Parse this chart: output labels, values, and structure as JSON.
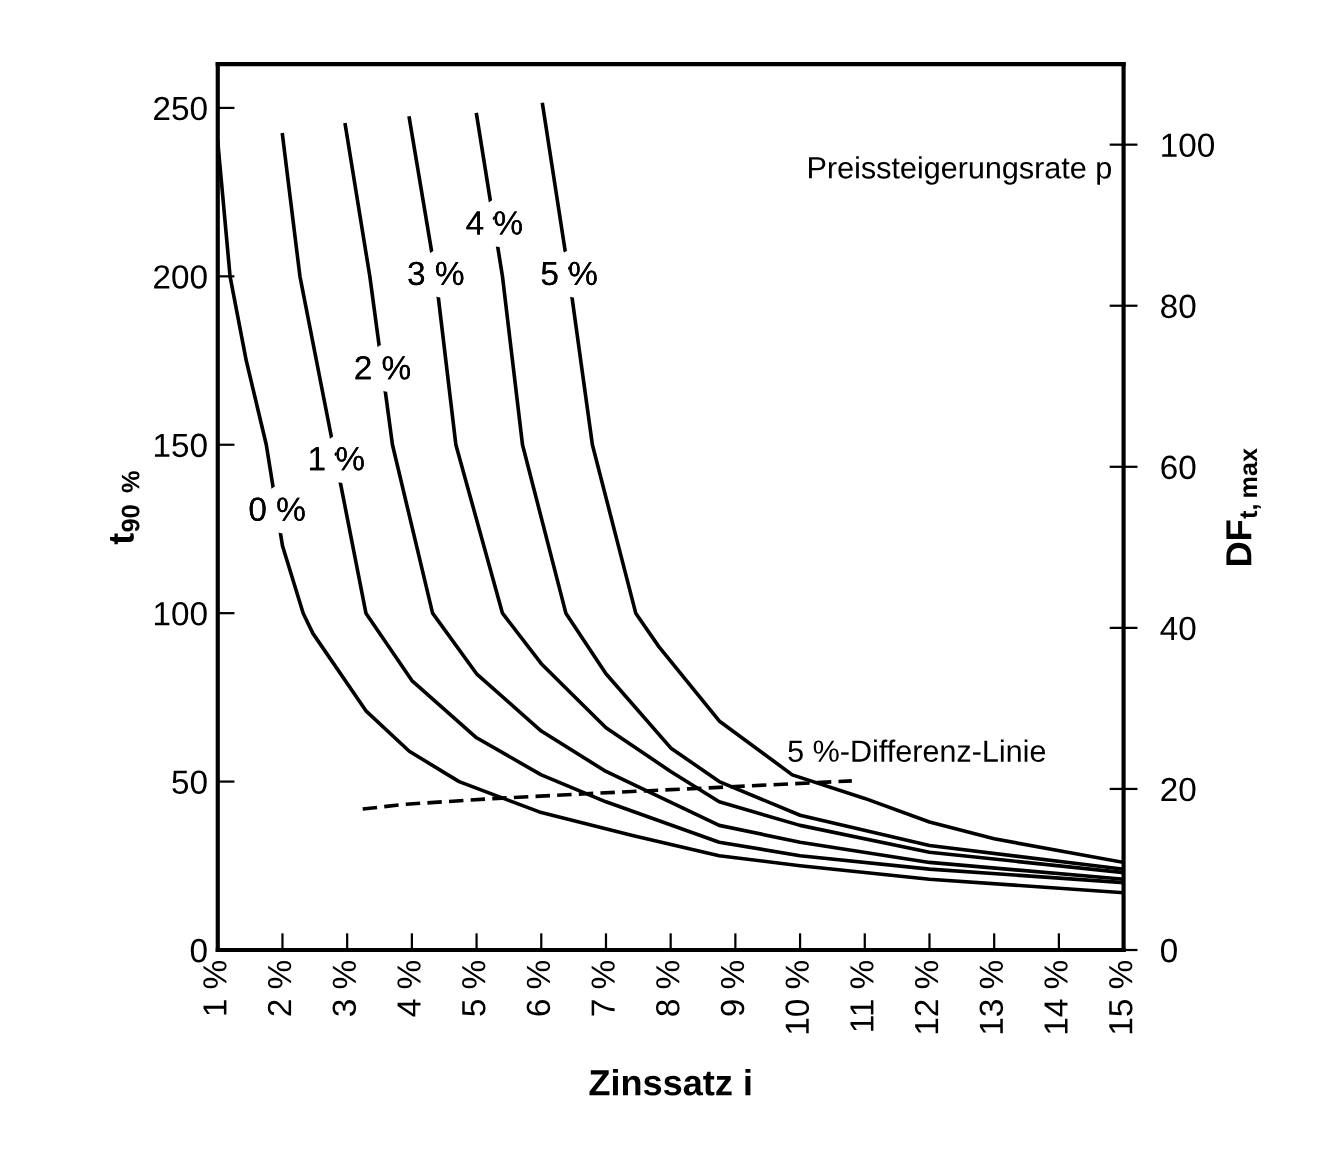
{
  "chart_data": {
    "type": "line",
    "xlabel": "Zinssatz i",
    "ylabel": "t$_{90 %}$",
    "y2label": "DF$_{t,max}$",
    "annotations": [
      "Preissteigerungsrate p"
    ],
    "xlim": [
      1,
      15
    ],
    "xticks": [
      {
        "value": 1,
        "label": "1 %"
      },
      {
        "value": 2,
        "label": "2 %"
      },
      {
        "value": 3,
        "label": "3 %"
      },
      {
        "value": 4,
        "label": "4 %"
      },
      {
        "value": 5,
        "label": "5 %"
      },
      {
        "value": 6,
        "label": "6 %"
      },
      {
        "value": 7,
        "label": "7 %"
      },
      {
        "value": 8,
        "label": "8 %"
      },
      {
        "value": 9,
        "label": "9 %"
      },
      {
        "value": 10,
        "label": "10 %"
      },
      {
        "value": 11,
        "label": "11 %"
      },
      {
        "value": 12,
        "label": "12 %"
      },
      {
        "value": 13,
        "label": "13 %"
      },
      {
        "value": 14,
        "label": "14 %"
      },
      {
        "value": 15,
        "label": "15 %"
      }
    ],
    "ylim": [
      0,
      263
    ],
    "yticks": [
      0,
      50,
      100,
      150,
      200,
      250
    ],
    "y2lim": [
      0,
      110
    ],
    "y2ticks": [
      0,
      20,
      40,
      60,
      80,
      100
    ],
    "grid": false,
    "legend": false,
    "marker": "none",
    "series": [
      {
        "name": "0 %",
        "color": "#000000",
        "line_style": "solid",
        "x": [
          1,
          1.19,
          1.44,
          1.75,
          2.0,
          2.32,
          2.47,
          3.29,
          3.96,
          4.73,
          5.97,
          7.41,
          8.75,
          10,
          12,
          15
        ],
        "values": [
          240,
          200,
          175,
          150,
          120,
          100,
          94,
          71,
          59,
          50,
          41,
          34,
          28,
          25,
          21,
          17
        ]
      },
      {
        "name": "1 %",
        "color": "#000000",
        "line_style": "solid",
        "x": [
          2.0,
          2.27,
          2.78,
          3.29,
          4,
          5,
          6,
          7,
          8.75,
          10,
          12,
          15
        ],
        "values": [
          242,
          200,
          150,
          100,
          80,
          63,
          52,
          44,
          32,
          28,
          24,
          20
        ]
      },
      {
        "name": "2 %",
        "color": "#000000",
        "line_style": "solid",
        "x": [
          2.97,
          3.35,
          3.7,
          4.32,
          5,
          6,
          7,
          8.75,
          10,
          12,
          15
        ],
        "values": [
          245,
          200,
          150,
          100,
          82,
          65,
          53,
          37,
          32,
          26,
          21
        ]
      },
      {
        "name": "3 %",
        "color": "#000000",
        "line_style": "solid",
        "x": [
          3.96,
          4.37,
          4.68,
          5.4,
          6,
          7,
          8,
          8.75,
          10,
          12,
          15
        ],
        "values": [
          247,
          200,
          150,
          100,
          85,
          66,
          53,
          44,
          37,
          29,
          23
        ]
      },
      {
        "name": "4 %",
        "color": "#000000",
        "line_style": "solid",
        "x": [
          5.0,
          5.4,
          5.71,
          6.38,
          7,
          8,
          8.75,
          10,
          12,
          15
        ],
        "values": [
          248,
          200,
          150,
          100,
          82,
          60,
          50,
          40,
          31,
          24
        ]
      },
      {
        "name": "5 %",
        "color": "#000000",
        "line_style": "solid",
        "x": [
          6.02,
          6.43,
          6.79,
          7.46,
          7.82,
          8.75,
          9.88,
          11,
          12,
          13,
          15
        ],
        "values": [
          251,
          200,
          150,
          100,
          90,
          68,
          52,
          45,
          38,
          33,
          26
        ]
      },
      {
        "name": "5 %-Differenz-Linie",
        "color": "#000000",
        "line_style": "dashed",
        "axis": "y2",
        "x": [
          3.24,
          3.91,
          5.25,
          6.69,
          8.75,
          10.8
        ],
        "values": [
          17.5,
          18.1,
          18.8,
          19.4,
          20.2,
          21.0
        ]
      }
    ]
  }
}
